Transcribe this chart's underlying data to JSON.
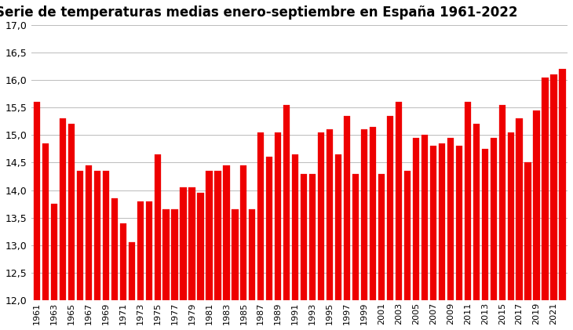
{
  "years": [
    1961,
    1962,
    1963,
    1964,
    1965,
    1966,
    1967,
    1968,
    1969,
    1970,
    1971,
    1972,
    1973,
    1974,
    1975,
    1976,
    1977,
    1978,
    1979,
    1980,
    1981,
    1982,
    1983,
    1984,
    1985,
    1986,
    1987,
    1988,
    1989,
    1990,
    1991,
    1992,
    1993,
    1994,
    1995,
    1996,
    1997,
    1998,
    1999,
    2000,
    2001,
    2002,
    2003,
    2004,
    2005,
    2006,
    2007,
    2008,
    2009,
    2010,
    2011,
    2012,
    2013,
    2014,
    2015,
    2016,
    2017,
    2018,
    2019,
    2020,
    2021,
    2022
  ],
  "values": [
    15.6,
    14.85,
    13.75,
    15.3,
    15.2,
    14.35,
    14.45,
    14.35,
    14.35,
    13.85,
    13.4,
    13.05,
    13.8,
    13.8,
    14.65,
    13.65,
    13.65,
    14.05,
    14.05,
    13.95,
    14.35,
    14.35,
    14.45,
    13.65,
    14.45,
    13.65,
    15.05,
    14.6,
    15.05,
    15.55,
    14.65,
    14.3,
    14.3,
    15.05,
    15.1,
    14.65,
    15.35,
    14.3,
    15.1,
    15.15,
    14.3,
    15.35,
    15.6,
    14.35,
    14.95,
    15.0,
    14.8,
    14.85,
    14.95,
    14.8,
    15.6,
    15.2,
    14.75,
    14.95,
    15.55,
    15.05,
    15.3,
    14.5,
    15.45,
    16.05,
    16.1,
    16.2
  ],
  "bar_color": "#ee0000",
  "bar_edgecolor": "#ee0000",
  "title": "Serie de temperaturas medias enero-septiembre en España 1961-2022",
  "title_fontsize": 12,
  "title_fontweight": "bold",
  "ylim": [
    12.0,
    17.0
  ],
  "yticks": [
    12.0,
    12.5,
    13.0,
    13.5,
    14.0,
    14.5,
    15.0,
    15.5,
    16.0,
    16.5,
    17.0
  ],
  "xtick_labels_step": 2,
  "grid_color": "#bbbbbb",
  "background_color": "#ffffff"
}
